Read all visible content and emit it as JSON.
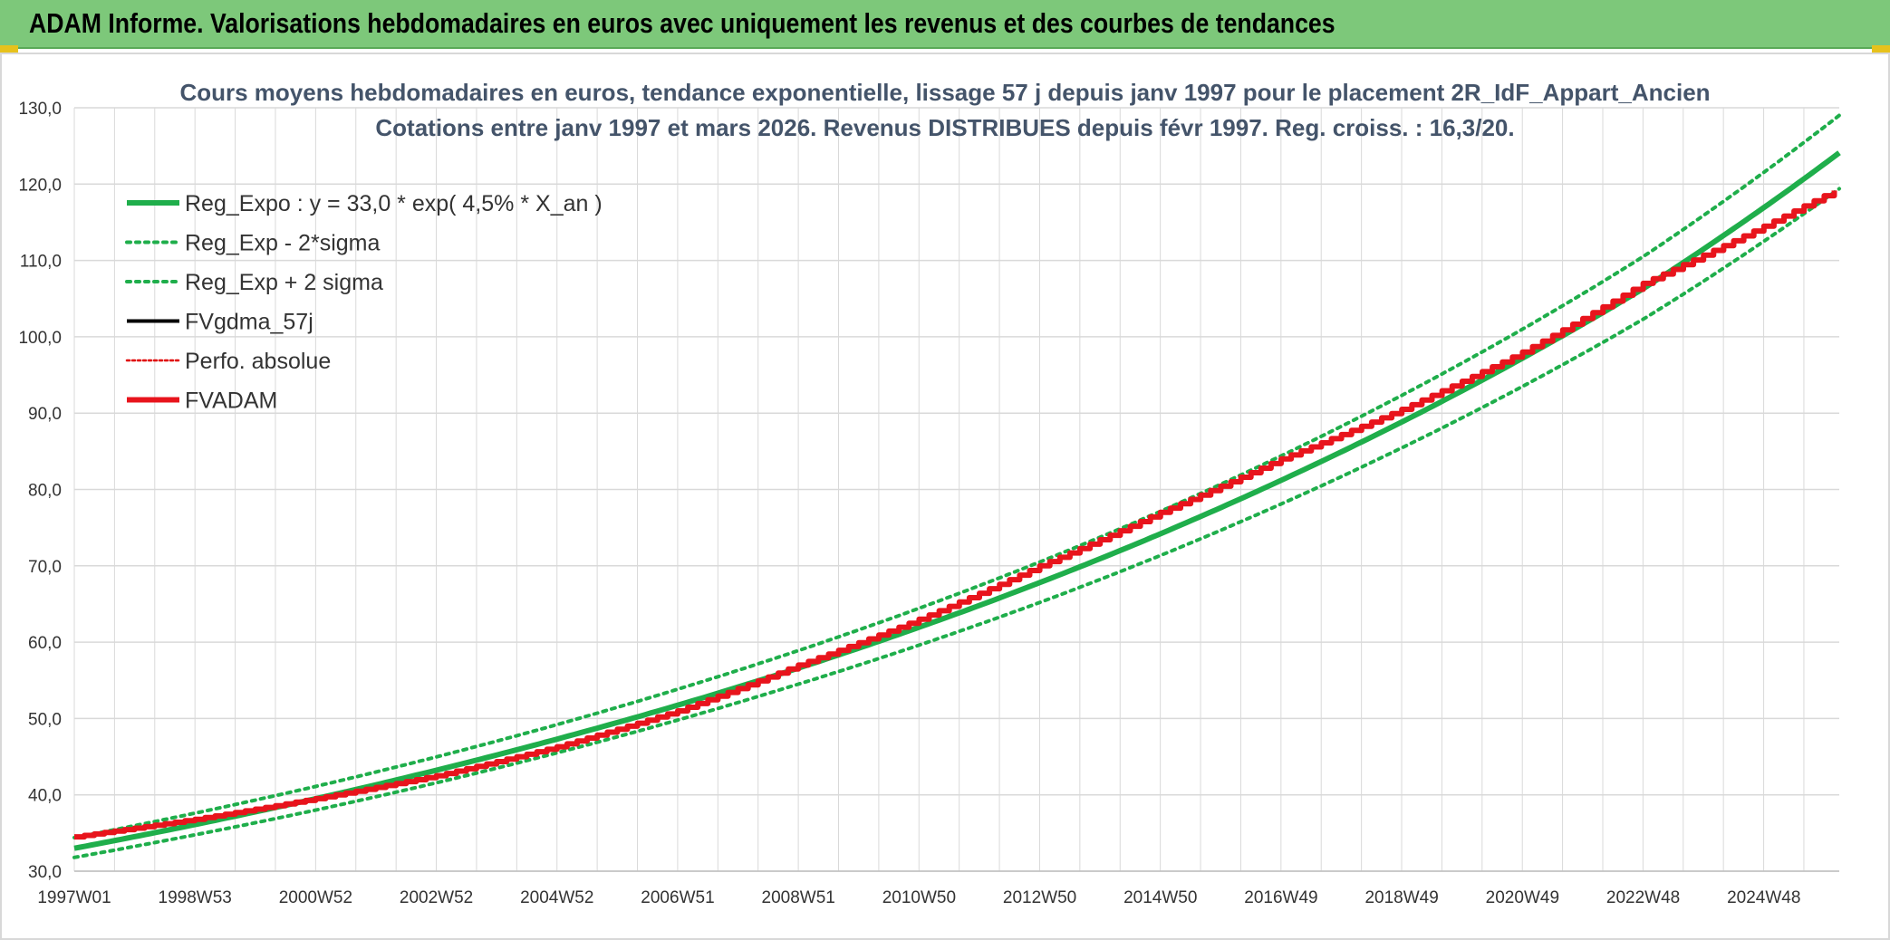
{
  "banner": {
    "title": "ADAM Informe. Valorisations hebdomadaires en euros avec uniquement les revenus et des courbes de tendances"
  },
  "colors": {
    "banner_bg": "#7dc87a",
    "trend_green": "#1fae4b",
    "fvadam_red": "#e8141c",
    "perfo_red": "#e00000",
    "fvgdma_black": "#000000",
    "grid": "#d9d9d9"
  },
  "chart_data": {
    "type": "line",
    "title": [
      "Cours moyens hebdomadaires en euros, tendance exponentielle, lissage 57 j depuis janv 1997 pour le placement 2R_IdF_Appart_Ancien",
      "Cotations entre janv 1997 et mars 2026. Revenus DISTRIBUES depuis févr 1997. Reg. croiss. : 16,3/20."
    ],
    "xlabel": "",
    "ylabel": "",
    "ylim": [
      30,
      130
    ],
    "yticks": [
      "30,0",
      "40,0",
      "50,0",
      "60,0",
      "70,0",
      "80,0",
      "90,0",
      "100,0",
      "110,0",
      "120,0",
      "130,0"
    ],
    "x_range_years": [
      1997.0,
      2026.25
    ],
    "xticks": [
      {
        "label": "1997W01",
        "year": 1997.0
      },
      {
        "label": "1998W53",
        "year": 1999.0
      },
      {
        "label": "2000W52",
        "year": 2001.0
      },
      {
        "label": "2002W52",
        "year": 2003.0
      },
      {
        "label": "2004W52",
        "year": 2005.0
      },
      {
        "label": "2006W51",
        "year": 2007.0
      },
      {
        "label": "2008W51",
        "year": 2009.0
      },
      {
        "label": "2010W50",
        "year": 2011.0
      },
      {
        "label": "2012W50",
        "year": 2013.0
      },
      {
        "label": "2014W50",
        "year": 2015.0
      },
      {
        "label": "2016W49",
        "year": 2017.0
      },
      {
        "label": "2018W49",
        "year": 2019.0
      },
      {
        "label": "2020W49",
        "year": 2021.0
      },
      {
        "label": "2022W48",
        "year": 2023.0
      },
      {
        "label": "2024W48",
        "year": 2025.0
      }
    ],
    "grid": true,
    "legend": "top-left",
    "series": [
      {
        "name": "Reg_Expo : y = 33,0 * exp( 4,5% *  X_an )",
        "style": "solid-thick",
        "color": "#1fae4b",
        "points": [
          [
            1997.0,
            33.0
          ],
          [
            2001.0,
            39.5
          ],
          [
            2005.0,
            47.3
          ],
          [
            2009.0,
            56.6
          ],
          [
            2013.0,
            67.8
          ],
          [
            2017.0,
            81.2
          ],
          [
            2021.0,
            97.2
          ],
          [
            2023.0,
            106.3
          ],
          [
            2026.25,
            124.1
          ]
        ]
      },
      {
        "name": "Reg_Exp - 2*sigma",
        "style": "dotted",
        "color": "#1fae4b",
        "points": [
          [
            1997.0,
            31.8
          ],
          [
            2001.0,
            38.0
          ],
          [
            2005.0,
            45.5
          ],
          [
            2009.0,
            54.5
          ],
          [
            2013.0,
            65.2
          ],
          [
            2017.0,
            78.1
          ],
          [
            2021.0,
            93.5
          ],
          [
            2023.0,
            102.3
          ],
          [
            2026.25,
            119.4
          ]
        ]
      },
      {
        "name": "Reg_Exp + 2 sigma",
        "style": "dotted",
        "color": "#1fae4b",
        "points": [
          [
            1997.0,
            34.4
          ],
          [
            2001.0,
            41.1
          ],
          [
            2005.0,
            49.2
          ],
          [
            2009.0,
            58.9
          ],
          [
            2013.0,
            70.5
          ],
          [
            2017.0,
            84.4
          ],
          [
            2021.0,
            101.0
          ],
          [
            2023.0,
            110.5
          ],
          [
            2026.25,
            129.0
          ]
        ]
      },
      {
        "name": "FVgdma_57j",
        "style": "solid",
        "color": "#000000",
        "points": []
      },
      {
        "name": "Perfo. absolue",
        "style": "dotted",
        "color": "#e00000",
        "points": []
      },
      {
        "name": "FVADAM",
        "style": "stepped-thick",
        "color": "#e8141c",
        "points": [
          [
            1997.0,
            34.5
          ],
          [
            1999.0,
            36.8
          ],
          [
            2001.0,
            39.5
          ],
          [
            2003.0,
            42.5
          ],
          [
            2005.0,
            46.3
          ],
          [
            2007.0,
            51.0
          ],
          [
            2009.0,
            57.0
          ],
          [
            2011.0,
            63.0
          ],
          [
            2013.0,
            70.0
          ],
          [
            2015.0,
            77.0
          ],
          [
            2017.0,
            84.0
          ],
          [
            2019.0,
            90.5
          ],
          [
            2021.0,
            98.0
          ],
          [
            2023.0,
            107.0
          ],
          [
            2025.0,
            114.5
          ],
          [
            2026.25,
            119.5
          ]
        ]
      }
    ]
  }
}
